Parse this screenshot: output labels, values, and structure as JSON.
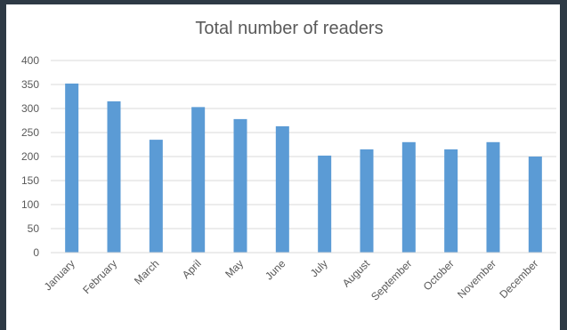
{
  "chart_data": {
    "type": "bar",
    "title": "Total number of readers",
    "xlabel": "",
    "ylabel": "",
    "categories": [
      "January",
      "February",
      "March",
      "April",
      "May",
      "June",
      "July",
      "August",
      "September",
      "October",
      "November",
      "December"
    ],
    "values": [
      352,
      315,
      235,
      303,
      278,
      263,
      202,
      215,
      230,
      215,
      230,
      200
    ],
    "ylim": [
      0,
      400
    ],
    "yticks": [
      0,
      50,
      100,
      150,
      200,
      250,
      300,
      350,
      400
    ],
    "grid": true,
    "legend": "none",
    "colors": {
      "bar": "#5b9bd5",
      "grid": "#d9d9d9",
      "text": "#595959",
      "background": "#ffffff",
      "border": "#2e3a45"
    }
  }
}
